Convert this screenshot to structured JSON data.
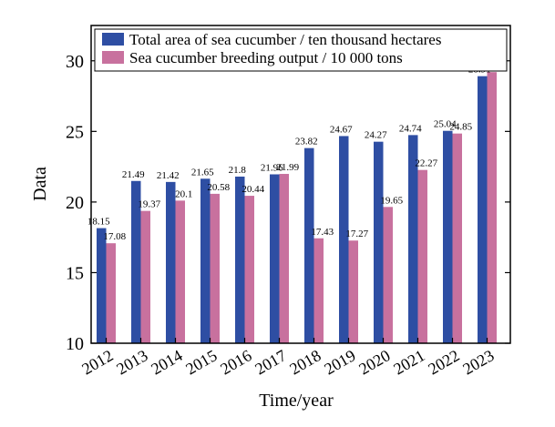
{
  "chart_data": {
    "type": "bar",
    "xlabel": "Time/year",
    "ylabel": "Data",
    "ylim": [
      10,
      32.5
    ],
    "yticks": [
      10,
      15,
      20,
      25,
      30
    ],
    "grid": false,
    "legend_position": "top-left",
    "categories": [
      "2012",
      "2013",
      "2014",
      "2015",
      "2016",
      "2017",
      "2018",
      "2019",
      "2020",
      "2021",
      "2022",
      "2023"
    ],
    "series": [
      {
        "name": "Total area of sea cucumber / ten thousand hectares",
        "color": "#2E4EA3",
        "values": [
          18.15,
          21.49,
          21.42,
          21.65,
          21.8,
          21.96,
          23.82,
          24.67,
          24.27,
          24.74,
          25.04,
          28.91
        ]
      },
      {
        "name": "Sea cucumber breeding output / 10 000 tons",
        "color": "#C8719E",
        "values": [
          17.08,
          19.37,
          20.1,
          20.58,
          20.44,
          21.99,
          17.43,
          17.27,
          19.65,
          22.27,
          24.85,
          29.2
        ]
      }
    ]
  }
}
